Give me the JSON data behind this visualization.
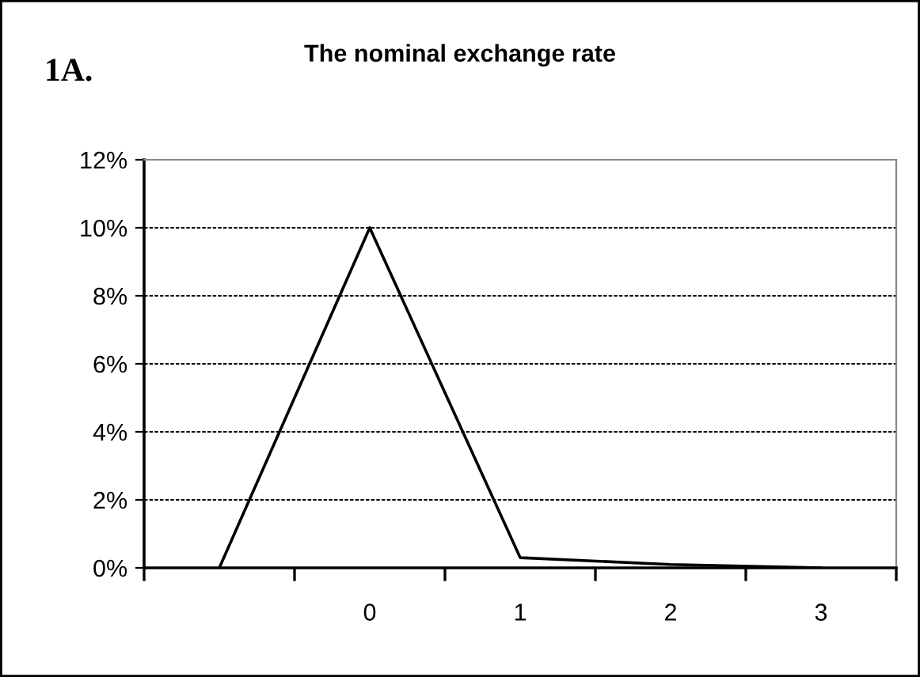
{
  "chart_data": {
    "type": "line",
    "title": "The nominal exchange rate",
    "annotations": [
      "1A."
    ],
    "categories": [
      null,
      "0",
      "1",
      "2",
      "3"
    ],
    "series": [
      {
        "color": "#000000",
        "values": [
          0,
          10,
          0.3,
          0.1,
          0
        ]
      }
    ],
    "ylim": [
      0,
      12
    ],
    "yticks": [
      {
        "value": 0,
        "label": "0%"
      },
      {
        "value": 2,
        "label": "2%"
      },
      {
        "value": 4,
        "label": "4%"
      },
      {
        "value": 6,
        "label": "6%"
      },
      {
        "value": 8,
        "label": "8%"
      },
      {
        "value": 10,
        "label": "10%"
      },
      {
        "value": 12,
        "label": "12%"
      }
    ],
    "grid": "y",
    "marker": "none",
    "line_style": "solid"
  }
}
